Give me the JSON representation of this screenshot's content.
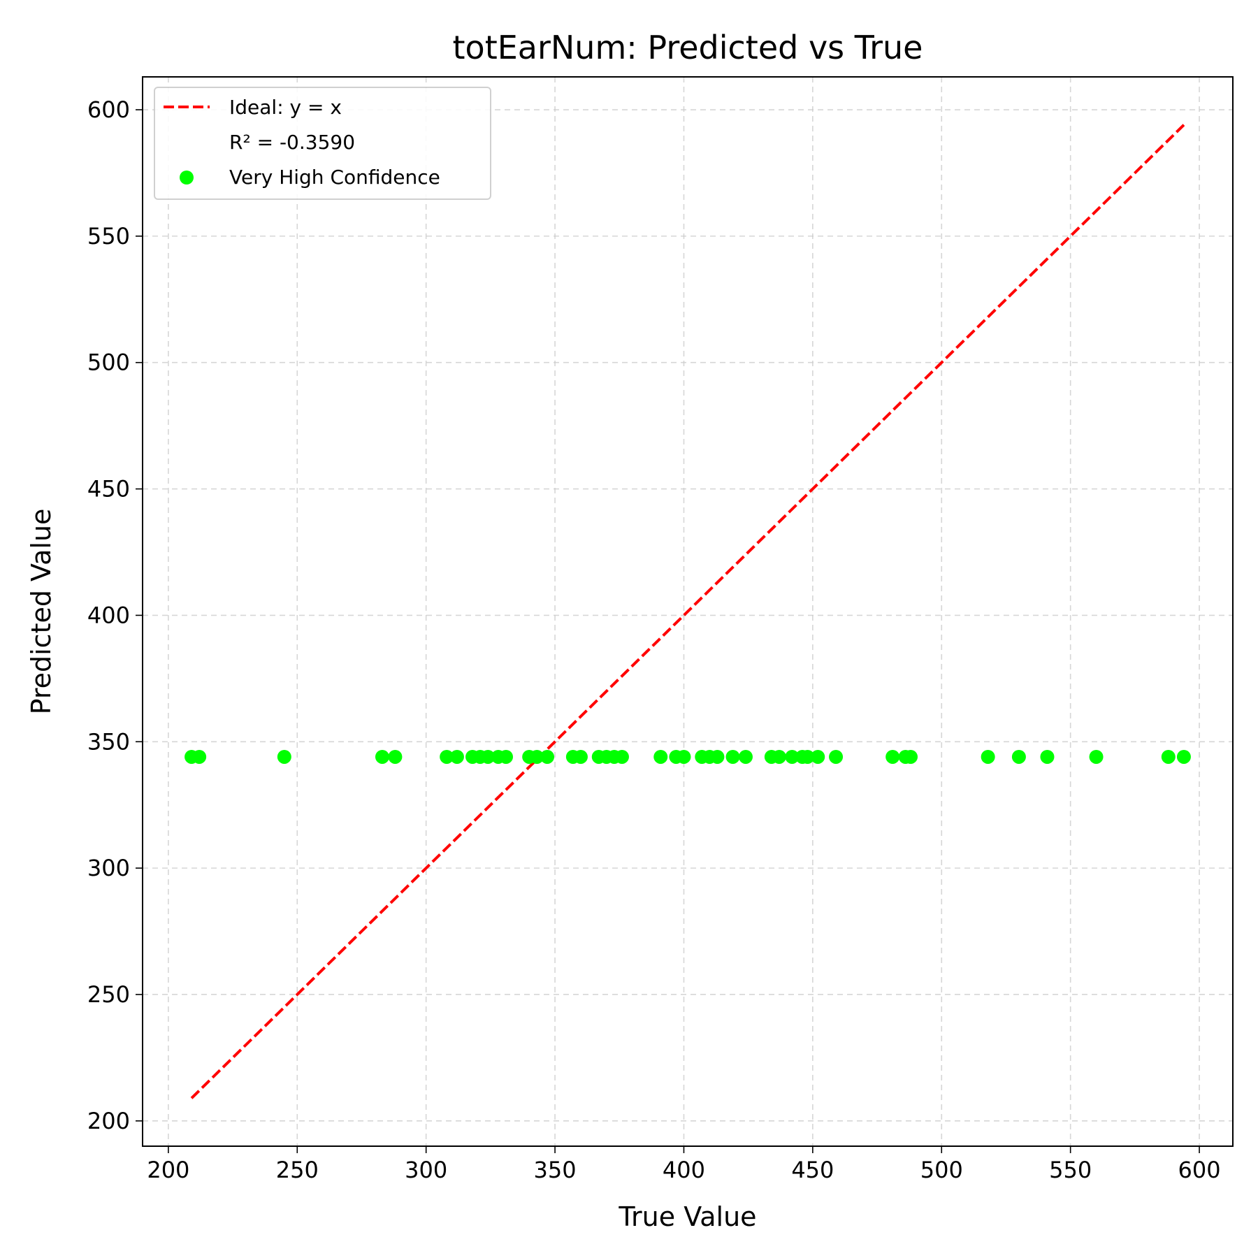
{
  "chart_data": {
    "type": "scatter",
    "title": "totEarNum: Predicted vs True",
    "xlabel": "True Value",
    "ylabel": "Predicted Value",
    "xlim": [
      190,
      613
    ],
    "ylim": [
      190,
      613
    ],
    "xticks": [
      200,
      250,
      300,
      350,
      400,
      450,
      500,
      550,
      600
    ],
    "yticks": [
      200,
      250,
      300,
      350,
      400,
      450,
      500,
      550,
      600
    ],
    "grid": true,
    "legend_position": "top-left",
    "ideal_line": {
      "name": "Ideal: y = x",
      "x": [
        209,
        594
      ],
      "y": [
        209,
        594
      ],
      "color": "#ff0000",
      "style": "dashed"
    },
    "annotation": "R² = -0.3590",
    "series": [
      {
        "name": "Very High Confidence",
        "color": "#00ff00",
        "x": [
          209,
          212,
          245,
          283,
          288,
          308,
          312,
          318,
          321,
          324,
          328,
          331,
          340,
          343,
          347,
          357,
          360,
          367,
          370,
          373,
          376,
          391,
          397,
          400,
          407,
          410,
          413,
          419,
          424,
          434,
          437,
          442,
          446,
          448,
          452,
          459,
          481,
          486,
          488,
          518,
          530,
          541,
          560,
          588,
          594
        ],
        "y": [
          344,
          344,
          344,
          344,
          344,
          344,
          344,
          344,
          344,
          344,
          344,
          344,
          344,
          344,
          344,
          344,
          344,
          344,
          344,
          344,
          344,
          344,
          344,
          344,
          344,
          344,
          344,
          344,
          344,
          344,
          344,
          344,
          344,
          344,
          344,
          344,
          344,
          344,
          344,
          344,
          344,
          344,
          344,
          344,
          344
        ]
      }
    ]
  }
}
